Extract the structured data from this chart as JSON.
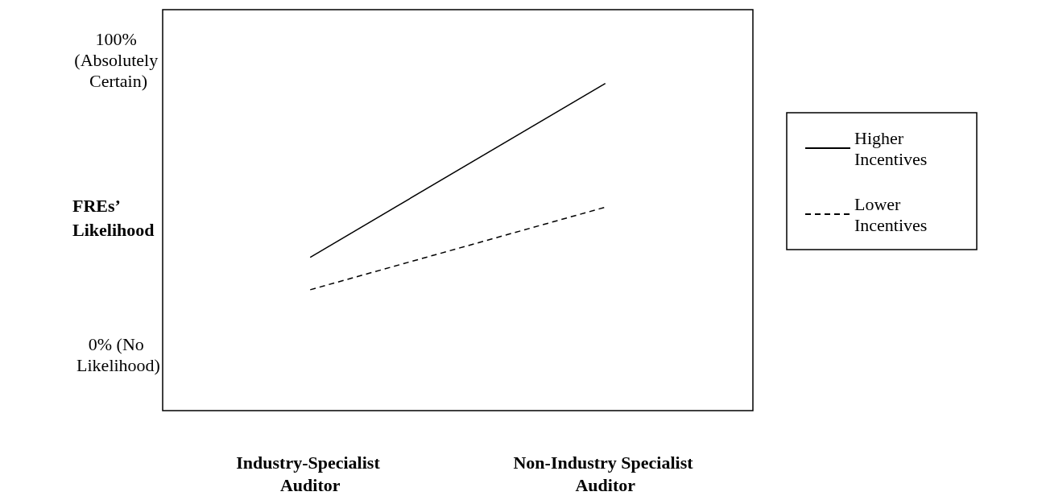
{
  "chart_data": {
    "type": "line",
    "categories": [
      "Industry-Specialist Auditor",
      "Non-Industry Specialist Auditor"
    ],
    "ylabel": "FREs’ Likelihood",
    "ylim": [
      -19,
      117
    ],
    "yticks": [
      {
        "value": 100,
        "label": "100% (Absolutely Certain)"
      },
      {
        "value": 0,
        "label": "0% (No Likelihood)"
      }
    ],
    "series": [
      {
        "name": "Higher Incentives",
        "color": "#000000",
        "line_style": "solid",
        "values": [
          33,
          92
        ]
      },
      {
        "name": "Lower Incentives",
        "color": "#000000",
        "line_style": "dashed",
        "values": [
          22,
          50
        ]
      }
    ],
    "marker": "none",
    "grid": false,
    "legend": "right"
  }
}
